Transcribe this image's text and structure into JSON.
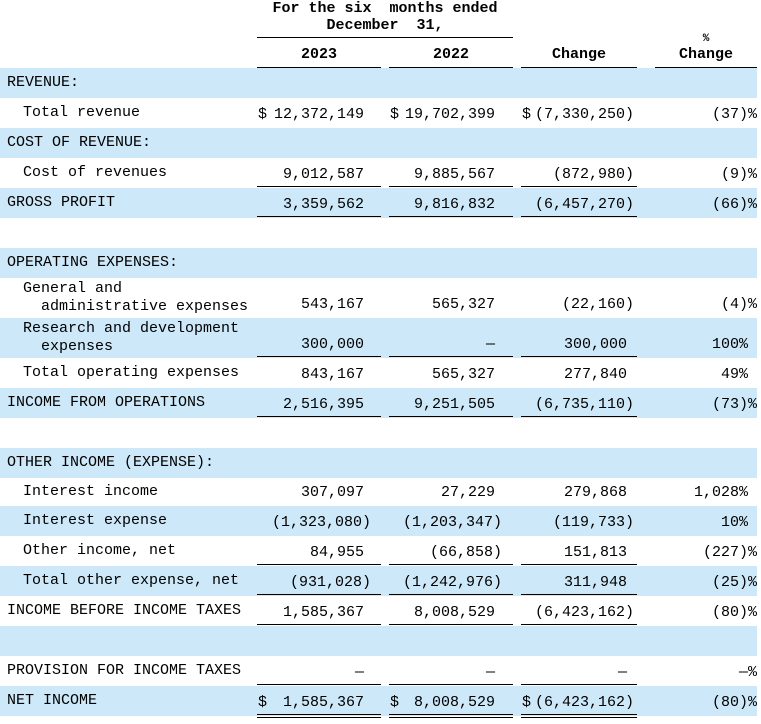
{
  "header": {
    "period": [
      "For the six  months ended",
      "December  31,"
    ],
    "columns": [
      "2023",
      "2022",
      "Change",
      [
        "%",
        "Change"
      ]
    ]
  },
  "rows": [
    {
      "label": [
        "REVENUE:"
      ]
    },
    {
      "label": [
        "Total revenue"
      ],
      "currency": "$",
      "values": [
        "12,372,149",
        "19,702,399",
        "(7,330,250)",
        "(37)%"
      ]
    },
    {
      "label": [
        "COST OF REVENUE:"
      ]
    },
    {
      "label": [
        "Cost of revenues"
      ],
      "values": [
        "9,012,587",
        "9,885,567",
        "(872,980)",
        "(9)%"
      ]
    },
    {
      "label": [
        "GROSS PROFIT"
      ],
      "values": [
        "3,359,562",
        "9,816,832",
        "(6,457,270)",
        "(66)%"
      ]
    },
    {
      "label": [
        "OPERATING EXPENSES:"
      ]
    },
    {
      "label": [
        "General and",
        "administrative expenses"
      ],
      "values": [
        "543,167",
        "565,327",
        "(22,160)",
        "(4)%"
      ]
    },
    {
      "label": [
        "Research and development",
        "expenses"
      ],
      "values": [
        "300,000",
        "—",
        "300,000",
        "100%"
      ]
    },
    {
      "label": [
        "Total operating expenses"
      ],
      "values": [
        "843,167",
        "565,327",
        "277,840",
        "49%"
      ]
    },
    {
      "label": [
        "INCOME FROM OPERATIONS"
      ],
      "values": [
        "2,516,395",
        "9,251,505",
        "(6,735,110)",
        "(73)%"
      ]
    },
    {
      "label": [
        "OTHER INCOME (EXPENSE):"
      ]
    },
    {
      "label": [
        "Interest income"
      ],
      "values": [
        "307,097",
        "27,229",
        "279,868",
        "1,028%"
      ]
    },
    {
      "label": [
        "Interest expense"
      ],
      "values": [
        "(1,323,080)",
        "(1,203,347)",
        "(119,733)",
        "10%"
      ]
    },
    {
      "label": [
        "Other income, net"
      ],
      "values": [
        "84,955",
        "(66,858)",
        "151,813",
        "(227)%"
      ]
    },
    {
      "label": [
        "Total other expense, net"
      ],
      "values": [
        "(931,028)",
        "(1,242,976)",
        "311,948",
        "(25)%"
      ]
    },
    {
      "label": [
        "INCOME BEFORE INCOME TAXES"
      ],
      "values": [
        "1,585,367",
        "8,008,529",
        "(6,423,162)",
        "(80)%"
      ]
    },
    {
      "label": [
        "PROVISION FOR INCOME TAXES"
      ],
      "values": [
        "—",
        "—",
        "—",
        "—%"
      ]
    },
    {
      "label": [
        "NET INCOME"
      ],
      "currency": "$",
      "values": [
        "1,585,367",
        "8,008,529",
        "(6,423,162)",
        "(80)%"
      ]
    }
  ]
}
